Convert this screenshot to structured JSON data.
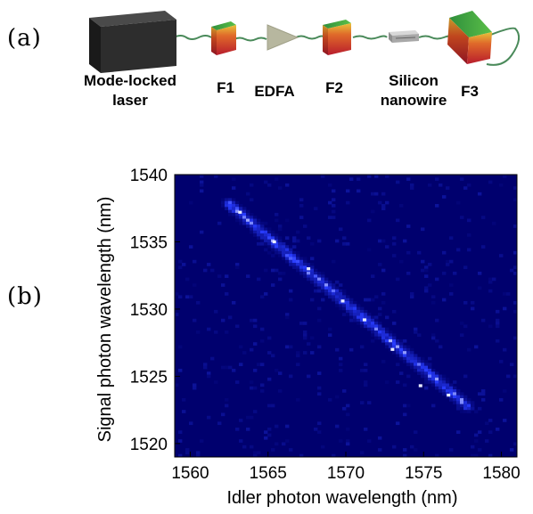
{
  "panels": {
    "a_label": "(a)",
    "b_label": "(b)"
  },
  "setup": {
    "components": [
      {
        "id": "laser",
        "line1": "Mode-locked",
        "line2": "laser",
        "icon": "black-box-icon",
        "color": "#2b2b2b"
      },
      {
        "id": "f1",
        "line1": "F1",
        "line2": "",
        "icon": "filter-cube-icon"
      },
      {
        "id": "edfa",
        "line1": "EDFA",
        "line2": "",
        "icon": "amplifier-triangle-icon",
        "color": "#b8b8a0"
      },
      {
        "id": "f2",
        "line1": "F2",
        "line2": "",
        "icon": "filter-cube-icon"
      },
      {
        "id": "nanowire",
        "line1": "Silicon",
        "line2": "nanowire",
        "icon": "chip-icon",
        "color": "#bdbdbd"
      },
      {
        "id": "f3",
        "line1": "F3",
        "line2": "",
        "icon": "filter-cube-icon"
      }
    ],
    "fiber_color": "#4a8a5a",
    "filter_colors": {
      "top": "#3aa048",
      "front_top": "#e0c040",
      "front_bottom": "#c02030"
    }
  },
  "chart_data": {
    "type": "heatmap",
    "title": "",
    "xlabel": "Idler photon wavelength (nm)",
    "ylabel": "Signal photon wavelength (nm)",
    "xlim": [
      1559,
      1581
    ],
    "ylim": [
      1519,
      1540
    ],
    "xticks": [
      1560,
      1565,
      1570,
      1575,
      1580
    ],
    "yticks": [
      1520,
      1525,
      1530,
      1535,
      1540
    ],
    "colormap": {
      "low": "#00008a",
      "mid": "#2a3cff",
      "high": "#ffffff"
    },
    "correlation_band": {
      "start": [
        1562.5,
        1537.8
      ],
      "end": [
        1577.8,
        1522.8
      ],
      "peak_point": [
        1574.8,
        1524.3
      ]
    }
  }
}
